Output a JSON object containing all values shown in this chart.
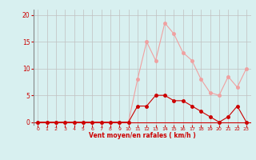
{
  "x": [
    0,
    1,
    2,
    3,
    4,
    5,
    6,
    7,
    8,
    9,
    10,
    11,
    12,
    13,
    14,
    15,
    16,
    17,
    18,
    19,
    20,
    21,
    22,
    23
  ],
  "y_mean": [
    0,
    0,
    0,
    0,
    0,
    0,
    0,
    0,
    0,
    0,
    0,
    3,
    3,
    5,
    5,
    4,
    4,
    3,
    2,
    1,
    0,
    1,
    3,
    0
  ],
  "y_gust": [
    0,
    0,
    0,
    0,
    0,
    0,
    0,
    0,
    0,
    0,
    0,
    8,
    15,
    11.5,
    18.5,
    16.5,
    13,
    11.5,
    8,
    5.5,
    5,
    8.5,
    6.5,
    10
  ],
  "xlabel": "Vent moyen/en rafales ( km/h )",
  "ylim": [
    -0.5,
    21
  ],
  "xlim": [
    -0.5,
    23.5
  ],
  "yticks": [
    0,
    5,
    10,
    15,
    20
  ],
  "xticks": [
    0,
    1,
    2,
    3,
    4,
    5,
    6,
    7,
    8,
    9,
    10,
    11,
    12,
    13,
    14,
    15,
    16,
    17,
    18,
    19,
    20,
    21,
    22,
    23
  ],
  "line_color_mean": "#cc0000",
  "line_color_gust": "#f0a0a0",
  "bg_color": "#d8f0f0",
  "grid_color": "#c0c0c0",
  "tick_color": "#cc0000",
  "label_color": "#cc0000",
  "marker_size": 2.5,
  "line_width": 0.8,
  "baseline_color": "#cc0000"
}
